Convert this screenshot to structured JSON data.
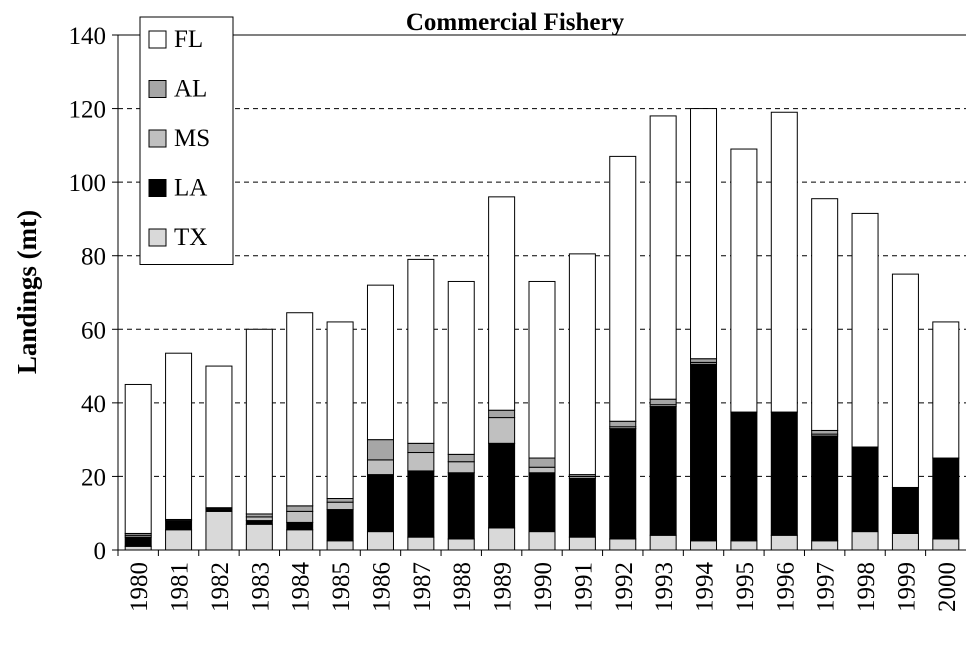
{
  "chart_data": {
    "type": "stacked_bar",
    "title": "Commercial Fishery",
    "y_label": "Landings (mt)",
    "categories": [
      "1980",
      "1981",
      "1982",
      "1983",
      "1984",
      "1985",
      "1986",
      "1987",
      "1988",
      "1989",
      "1990",
      "1991",
      "1992",
      "1993",
      "1994",
      "1995",
      "1996",
      "1997",
      "1998",
      "1999",
      "2000"
    ],
    "series": [
      {
        "name": "TX",
        "color": "#d9d9d9",
        "values": [
          1,
          5.5,
          10.5,
          7,
          5.5,
          2.5,
          5,
          3.5,
          3,
          6,
          5,
          3.5,
          3,
          4,
          2.5,
          2.5,
          4,
          2.5,
          5,
          4.5,
          3
        ]
      },
      {
        "name": "LA",
        "color": "#000000",
        "values": [
          2.5,
          2.5,
          0.5,
          1,
          2,
          8.5,
          15.5,
          18,
          18,
          23,
          16,
          16,
          30,
          35,
          48,
          35,
          33.5,
          28.5,
          23,
          12.5,
          22
        ]
      },
      {
        "name": "MS",
        "color": "#c0c0c0",
        "values": [
          0.5,
          0,
          0.3,
          1,
          3,
          2,
          4,
          5,
          3,
          7,
          1.5,
          0.5,
          0.5,
          0.5,
          0.5,
          0,
          0,
          0.5,
          0,
          0,
          0
        ]
      },
      {
        "name": "AL",
        "color": "#a6a6a6",
        "values": [
          0.5,
          0.3,
          0.2,
          0.8,
          1.5,
          1,
          5.5,
          2.5,
          2,
          2,
          2.5,
          0.5,
          1.5,
          1.5,
          1,
          0,
          0,
          1,
          0,
          0,
          0
        ]
      },
      {
        "name": "FL",
        "color": "#ffffff",
        "values": [
          40.5,
          45.2,
          38.5,
          50.2,
          52.5,
          48,
          42,
          50,
          47,
          58,
          48,
          60,
          72,
          77,
          68,
          71.5,
          81.5,
          63,
          63.5,
          58,
          37
        ]
      }
    ],
    "ylim": [
      0,
      140
    ],
    "yticks": [
      0,
      20,
      40,
      60,
      80,
      100,
      120,
      140
    ],
    "grid": true,
    "legend": "top-left"
  }
}
